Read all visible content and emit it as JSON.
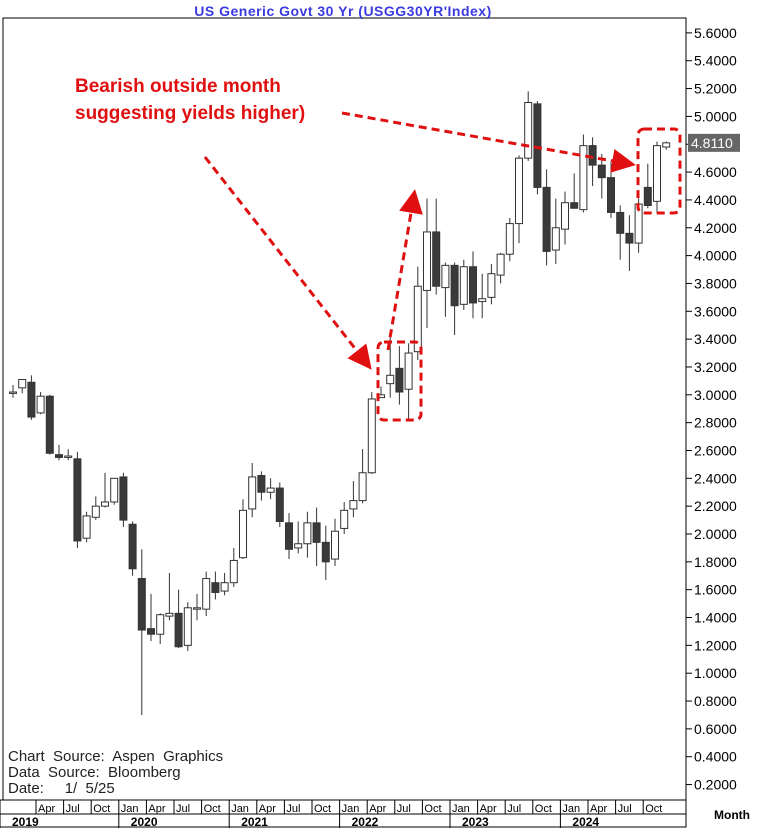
{
  "chart_data": {
    "type": "candlestick",
    "title": "US  Generic  Govt  30  Yr  (USGG30YR'Index)",
    "period_label": "Month",
    "last_value_label": "4.8110",
    "ylim": [
      0,
      5.8
    ],
    "y_ticks": [
      "5.6000",
      "5.4000",
      "5.2000",
      "5.0000",
      "4.8000",
      "4.6000",
      "4.4000",
      "4.2000",
      "4.0000",
      "3.8000",
      "3.6000",
      "3.4000",
      "3.2000",
      "3.0000",
      "2.8000",
      "2.6000",
      "2.4000",
      "2.2000",
      "2.0000",
      "1.8000",
      "1.6000",
      "1.4000",
      "1.2000",
      "1.0000",
      "0.8000",
      "0.6000",
      "0.4000",
      "0.2000"
    ],
    "month_labels": [
      "Apr",
      "Jul",
      "Oct",
      "Jan",
      "Apr",
      "Jul",
      "Oct",
      "Jan",
      "Apr",
      "Jul",
      "Oct",
      "Jan",
      "Apr",
      "Jul",
      "Oct",
      "Jan",
      "Apr",
      "Jul",
      "Oct",
      "Jan",
      "Apr",
      "Jul",
      "Oct"
    ],
    "year_labels": [
      "2019",
      "2020",
      "2021",
      "2022",
      "2023",
      "2024"
    ],
    "annotations": {
      "text_line1": "Bearish outside month",
      "text_line2": "suggesting yields higher)"
    },
    "source_lines": [
      "Chart  Source:  Aspen  Graphics",
      "Data  Source:  Bloomberg",
      "Date:     1/  5/25"
    ],
    "candles": [
      {
        "o": 3.01,
        "h": 3.07,
        "l": 2.98,
        "c": 3.02
      },
      {
        "o": 3.05,
        "h": 3.1,
        "l": 3.01,
        "c": 3.11
      },
      {
        "o": 3.09,
        "h": 3.14,
        "l": 2.82,
        "c": 2.84
      },
      {
        "o": 2.87,
        "h": 3.02,
        "l": 2.86,
        "c": 2.99
      },
      {
        "o": 2.99,
        "h": 3.0,
        "l": 2.57,
        "c": 2.58
      },
      {
        "o": 2.57,
        "h": 2.64,
        "l": 2.53,
        "c": 2.55
      },
      {
        "o": 2.55,
        "h": 2.61,
        "l": 2.53,
        "c": 2.56
      },
      {
        "o": 2.54,
        "h": 2.59,
        "l": 1.9,
        "c": 1.95
      },
      {
        "o": 1.97,
        "h": 2.16,
        "l": 1.94,
        "c": 2.13
      },
      {
        "o": 2.12,
        "h": 2.27,
        "l": 2.1,
        "c": 2.2
      },
      {
        "o": 2.2,
        "h": 2.44,
        "l": 2.19,
        "c": 2.23
      },
      {
        "o": 2.23,
        "h": 2.39,
        "l": 2.21,
        "c": 2.4
      },
      {
        "o": 2.41,
        "h": 2.44,
        "l": 2.05,
        "c": 2.1
      },
      {
        "o": 2.07,
        "h": 2.09,
        "l": 1.7,
        "c": 1.75
      },
      {
        "o": 1.68,
        "h": 1.89,
        "l": 0.7,
        "c": 1.31
      },
      {
        "o": 1.32,
        "h": 1.57,
        "l": 1.23,
        "c": 1.28
      },
      {
        "o": 1.28,
        "h": 1.43,
        "l": 1.21,
        "c": 1.42
      },
      {
        "o": 1.41,
        "h": 1.72,
        "l": 1.38,
        "c": 1.43
      },
      {
        "o": 1.43,
        "h": 1.6,
        "l": 1.18,
        "c": 1.19
      },
      {
        "o": 1.2,
        "h": 1.51,
        "l": 1.16,
        "c": 1.47
      },
      {
        "o": 1.46,
        "h": 1.57,
        "l": 1.38,
        "c": 1.47
      },
      {
        "o": 1.46,
        "h": 1.73,
        "l": 1.41,
        "c": 1.68
      },
      {
        "o": 1.65,
        "h": 1.73,
        "l": 1.53,
        "c": 1.58
      },
      {
        "o": 1.59,
        "h": 1.72,
        "l": 1.56,
        "c": 1.65
      },
      {
        "o": 1.65,
        "h": 1.9,
        "l": 1.62,
        "c": 1.81
      },
      {
        "o": 1.83,
        "h": 2.25,
        "l": 1.82,
        "c": 2.17
      },
      {
        "o": 2.18,
        "h": 2.51,
        "l": 2.12,
        "c": 2.41
      },
      {
        "o": 2.42,
        "h": 2.45,
        "l": 2.24,
        "c": 2.3
      },
      {
        "o": 2.3,
        "h": 2.4,
        "l": 2.25,
        "c": 2.33
      },
      {
        "o": 2.33,
        "h": 2.37,
        "l": 2.05,
        "c": 2.09
      },
      {
        "o": 2.08,
        "h": 2.15,
        "l": 1.82,
        "c": 1.89
      },
      {
        "o": 1.9,
        "h": 2.09,
        "l": 1.86,
        "c": 1.93
      },
      {
        "o": 1.93,
        "h": 2.16,
        "l": 1.83,
        "c": 2.08
      },
      {
        "o": 2.08,
        "h": 2.19,
        "l": 1.77,
        "c": 1.94
      },
      {
        "o": 1.94,
        "h": 2.06,
        "l": 1.67,
        "c": 1.8
      },
      {
        "o": 1.82,
        "h": 2.11,
        "l": 1.77,
        "c": 2.02
      },
      {
        "o": 2.04,
        "h": 2.23,
        "l": 2.0,
        "c": 2.17
      },
      {
        "o": 2.18,
        "h": 2.38,
        "l": 2.12,
        "c": 2.24
      },
      {
        "o": 2.24,
        "h": 2.61,
        "l": 2.22,
        "c": 2.44
      },
      {
        "o": 2.44,
        "h": 3.02,
        "l": 2.43,
        "c": 2.97
      },
      {
        "o": 2.98,
        "h": 3.06,
        "l": 2.98,
        "c": 3.0
      },
      {
        "o": 3.08,
        "h": 3.42,
        "l": 2.98,
        "c": 3.14
      },
      {
        "o": 3.19,
        "h": 3.35,
        "l": 2.93,
        "c": 3.02
      },
      {
        "o": 3.04,
        "h": 3.37,
        "l": 2.83,
        "c": 3.3
      },
      {
        "o": 3.31,
        "h": 3.92,
        "l": 3.25,
        "c": 3.78
      },
      {
        "o": 3.75,
        "h": 4.41,
        "l": 3.48,
        "c": 4.17
      },
      {
        "o": 4.17,
        "h": 4.41,
        "l": 3.72,
        "c": 3.78
      },
      {
        "o": 3.77,
        "h": 3.95,
        "l": 3.56,
        "c": 3.93
      },
      {
        "o": 3.93,
        "h": 3.95,
        "l": 3.43,
        "c": 3.64
      },
      {
        "o": 3.65,
        "h": 3.97,
        "l": 3.61,
        "c": 3.92
      },
      {
        "o": 3.92,
        "h": 4.03,
        "l": 3.55,
        "c": 3.66
      },
      {
        "o": 3.67,
        "h": 3.87,
        "l": 3.55,
        "c": 3.69
      },
      {
        "o": 3.7,
        "h": 3.94,
        "l": 3.65,
        "c": 3.87
      },
      {
        "o": 3.86,
        "h": 4.02,
        "l": 3.8,
        "c": 4.01
      },
      {
        "o": 4.01,
        "h": 4.27,
        "l": 3.96,
        "c": 4.23
      },
      {
        "o": 4.23,
        "h": 4.72,
        "l": 4.09,
        "c": 4.7
      },
      {
        "o": 4.7,
        "h": 5.18,
        "l": 4.68,
        "c": 5.1
      },
      {
        "o": 5.09,
        "h": 5.11,
        "l": 4.44,
        "c": 4.49
      },
      {
        "o": 4.49,
        "h": 4.62,
        "l": 3.93,
        "c": 4.03
      },
      {
        "o": 4.04,
        "h": 4.41,
        "l": 3.94,
        "c": 4.2
      },
      {
        "o": 4.19,
        "h": 4.46,
        "l": 4.08,
        "c": 4.38
      },
      {
        "o": 4.38,
        "h": 4.59,
        "l": 4.34,
        "c": 4.34
      },
      {
        "o": 4.33,
        "h": 4.87,
        "l": 4.31,
        "c": 4.79
      },
      {
        "o": 4.79,
        "h": 4.85,
        "l": 4.5,
        "c": 4.65
      },
      {
        "o": 4.65,
        "h": 4.73,
        "l": 4.41,
        "c": 4.56
      },
      {
        "o": 4.56,
        "h": 4.67,
        "l": 4.27,
        "c": 4.31
      },
      {
        "o": 4.31,
        "h": 4.36,
        "l": 3.97,
        "c": 4.16
      },
      {
        "o": 4.16,
        "h": 4.29,
        "l": 3.89,
        "c": 4.09
      },
      {
        "o": 4.09,
        "h": 4.41,
        "l": 4.02,
        "c": 4.37
      },
      {
        "o": 4.49,
        "h": 4.66,
        "l": 4.34,
        "c": 4.36
      },
      {
        "o": 4.39,
        "h": 4.82,
        "l": 4.31,
        "c": 4.79
      },
      {
        "o": 4.78,
        "h": 4.82,
        "l": 4.76,
        "c": 4.81
      }
    ]
  }
}
